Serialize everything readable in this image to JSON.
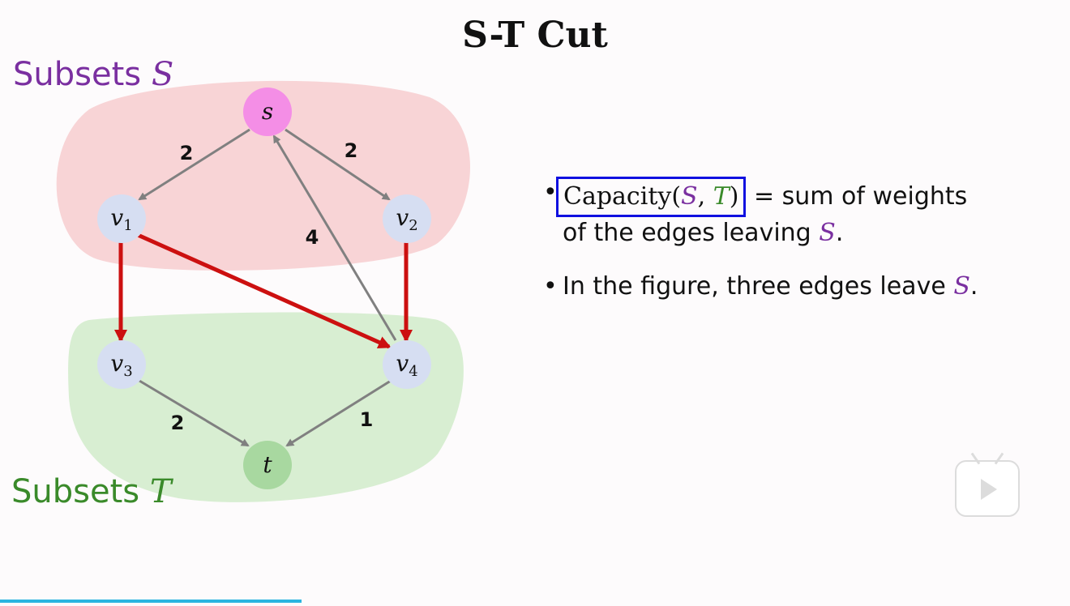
{
  "title": "S-T Cut",
  "diagram": {
    "labels": {
      "subsets_s": "Subsets ",
      "subsets_s_sym": "S",
      "subsets_t": "Subsets ",
      "subsets_t_sym": "T"
    },
    "nodes": {
      "s": "s",
      "v1": "v",
      "v1_sub": "1",
      "v2": "v",
      "v2_sub": "2",
      "v3": "v",
      "v3_sub": "3",
      "v4": "v",
      "v4_sub": "4",
      "t": "t"
    },
    "edge_weights": {
      "s_v1": "2",
      "s_v2": "2",
      "v4_s": "4",
      "v3_t": "2",
      "v4_t": "1"
    },
    "colors": {
      "region_s": "#f8d4d6",
      "region_t": "#d8eed2",
      "node_default": "#d6def2",
      "node_source": "#f48ee6",
      "node_sink": "#a8d8a0",
      "edge_normal": "#808080",
      "edge_cut": "#cc1010",
      "label_s": "#7a2fa0",
      "label_t": "#3a8a2a"
    }
  },
  "bullets": {
    "b1_capacity": "Capacity(",
    "b1_s": "S",
    "b1_comma": ", ",
    "b1_t": "T",
    "b1_close": ")",
    "b1_rest": " = sum of weights",
    "b1_line2": "of the edges leaving ",
    "b1_line2_s": "S",
    "b1_line2_end": ".",
    "b2_text": "In the figure, three edges leave ",
    "b2_s": "S",
    "b2_end": ".",
    "dot": "•"
  },
  "player": {
    "icon": "bilibili-play-icon"
  }
}
